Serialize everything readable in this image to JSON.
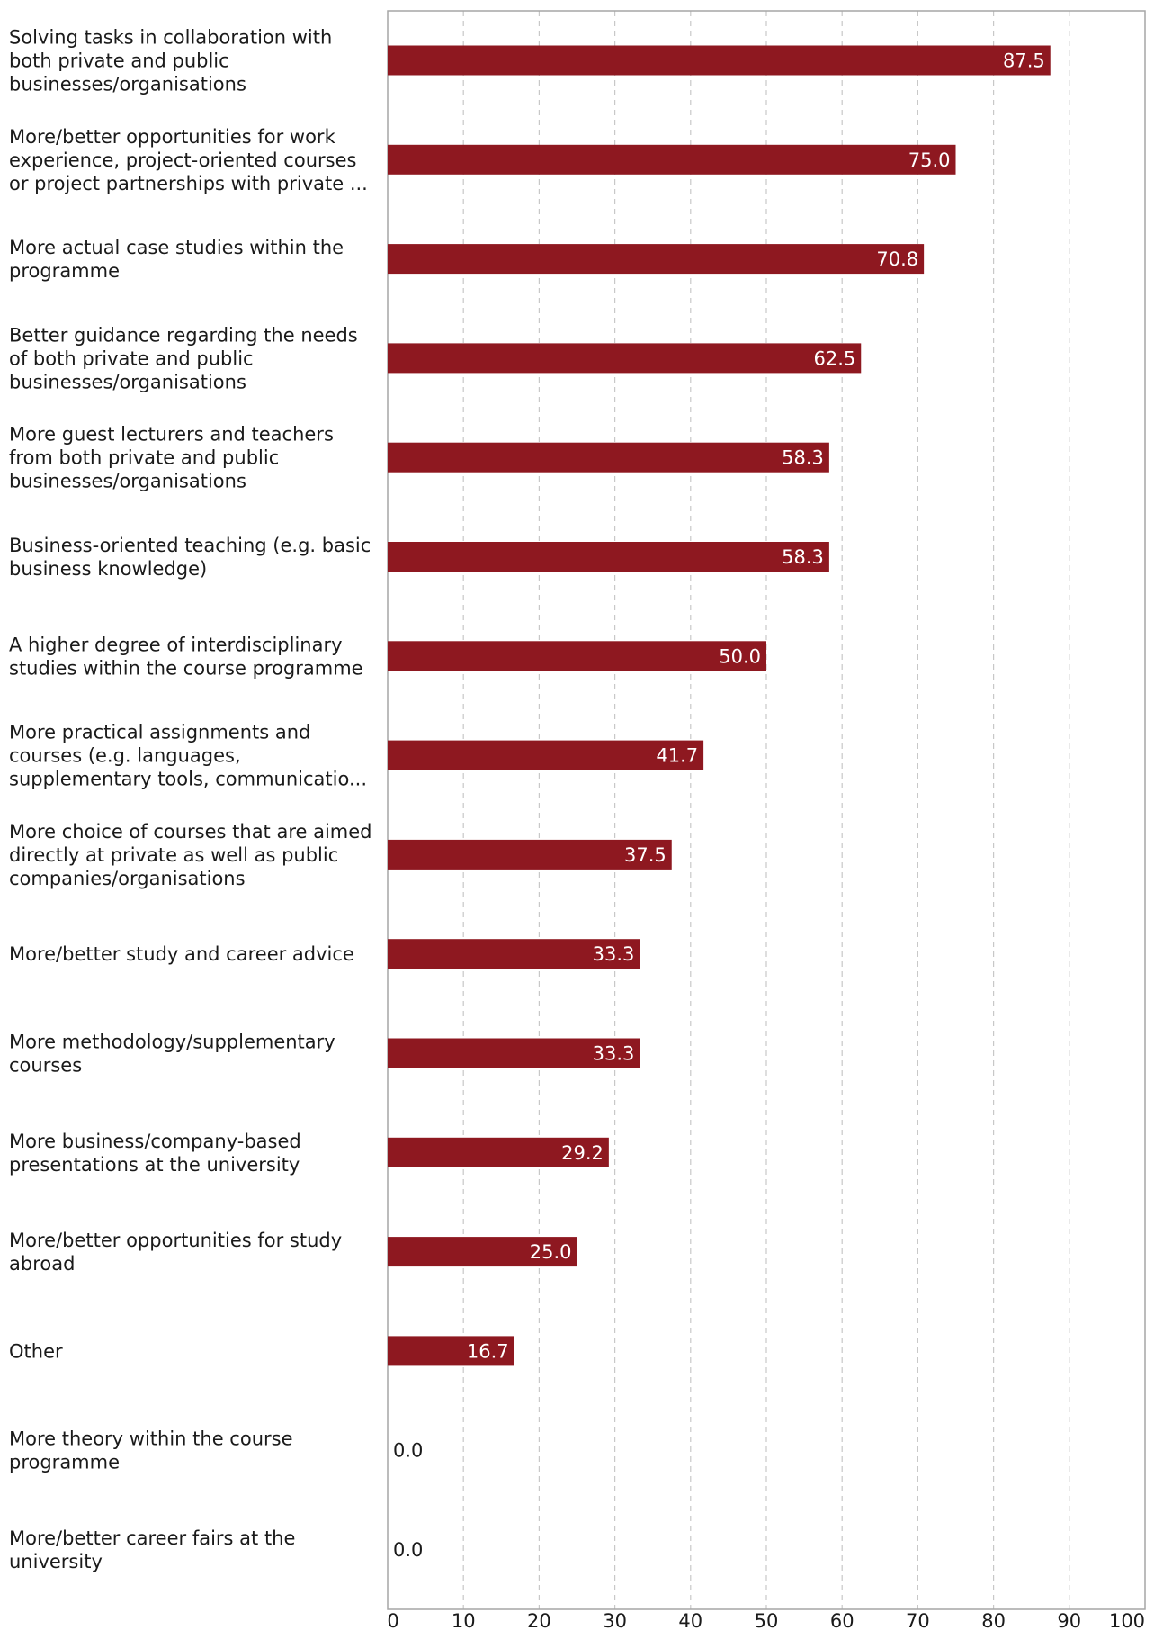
{
  "chart_data": {
    "type": "bar",
    "orientation": "horizontal",
    "title": "",
    "xlabel": "",
    "ylabel": "",
    "xlim": [
      0,
      100
    ],
    "x_ticks": [
      0,
      10,
      20,
      30,
      40,
      50,
      60,
      70,
      80,
      90,
      100
    ],
    "grid": "vertical-dashed",
    "bar_color": "#8e1820",
    "categories": [
      [
        "Solving tasks in collaboration with",
        "both private and public",
        "businesses/organisations"
      ],
      [
        "More/better opportunities for work",
        "experience, project-oriented courses",
        "or project partnerships with private ..."
      ],
      [
        "More actual case studies within the",
        "programme"
      ],
      [
        "Better guidance regarding the needs",
        "of both private and public",
        "businesses/organisations"
      ],
      [
        "More guest lecturers and teachers",
        "from both private and public",
        "businesses/organisations"
      ],
      [
        "Business-oriented teaching (e.g. basic",
        "business knowledge)"
      ],
      [
        "A higher degree of interdisciplinary",
        "studies within the course programme"
      ],
      [
        "More practical assignments and",
        "courses (e.g. languages,",
        "supplementary tools, communicatio..."
      ],
      [
        "More choice of courses that are aimed",
        "directly at private as well as public",
        "companies/organisations"
      ],
      [
        "More/better study and career advice"
      ],
      [
        "More methodology/supplementary",
        "courses"
      ],
      [
        "More business/company-based",
        "presentations at the university"
      ],
      [
        "More/better opportunities for study",
        "abroad"
      ],
      [
        "Other"
      ],
      [
        "More theory within the course",
        "programme"
      ],
      [
        "More/better career fairs at the",
        "university"
      ]
    ],
    "values": [
      87.5,
      75.0,
      70.8,
      62.5,
      58.3,
      58.3,
      50.0,
      41.7,
      37.5,
      33.3,
      33.3,
      29.2,
      25.0,
      16.7,
      0.0,
      0.0
    ],
    "value_labels": [
      "87.5",
      "75.0",
      "70.8",
      "62.5",
      "58.3",
      "58.3",
      "50.0",
      "41.7",
      "37.5",
      "33.3",
      "33.3",
      "29.2",
      "25.0",
      "16.7",
      "0.0",
      "0.0"
    ]
  }
}
